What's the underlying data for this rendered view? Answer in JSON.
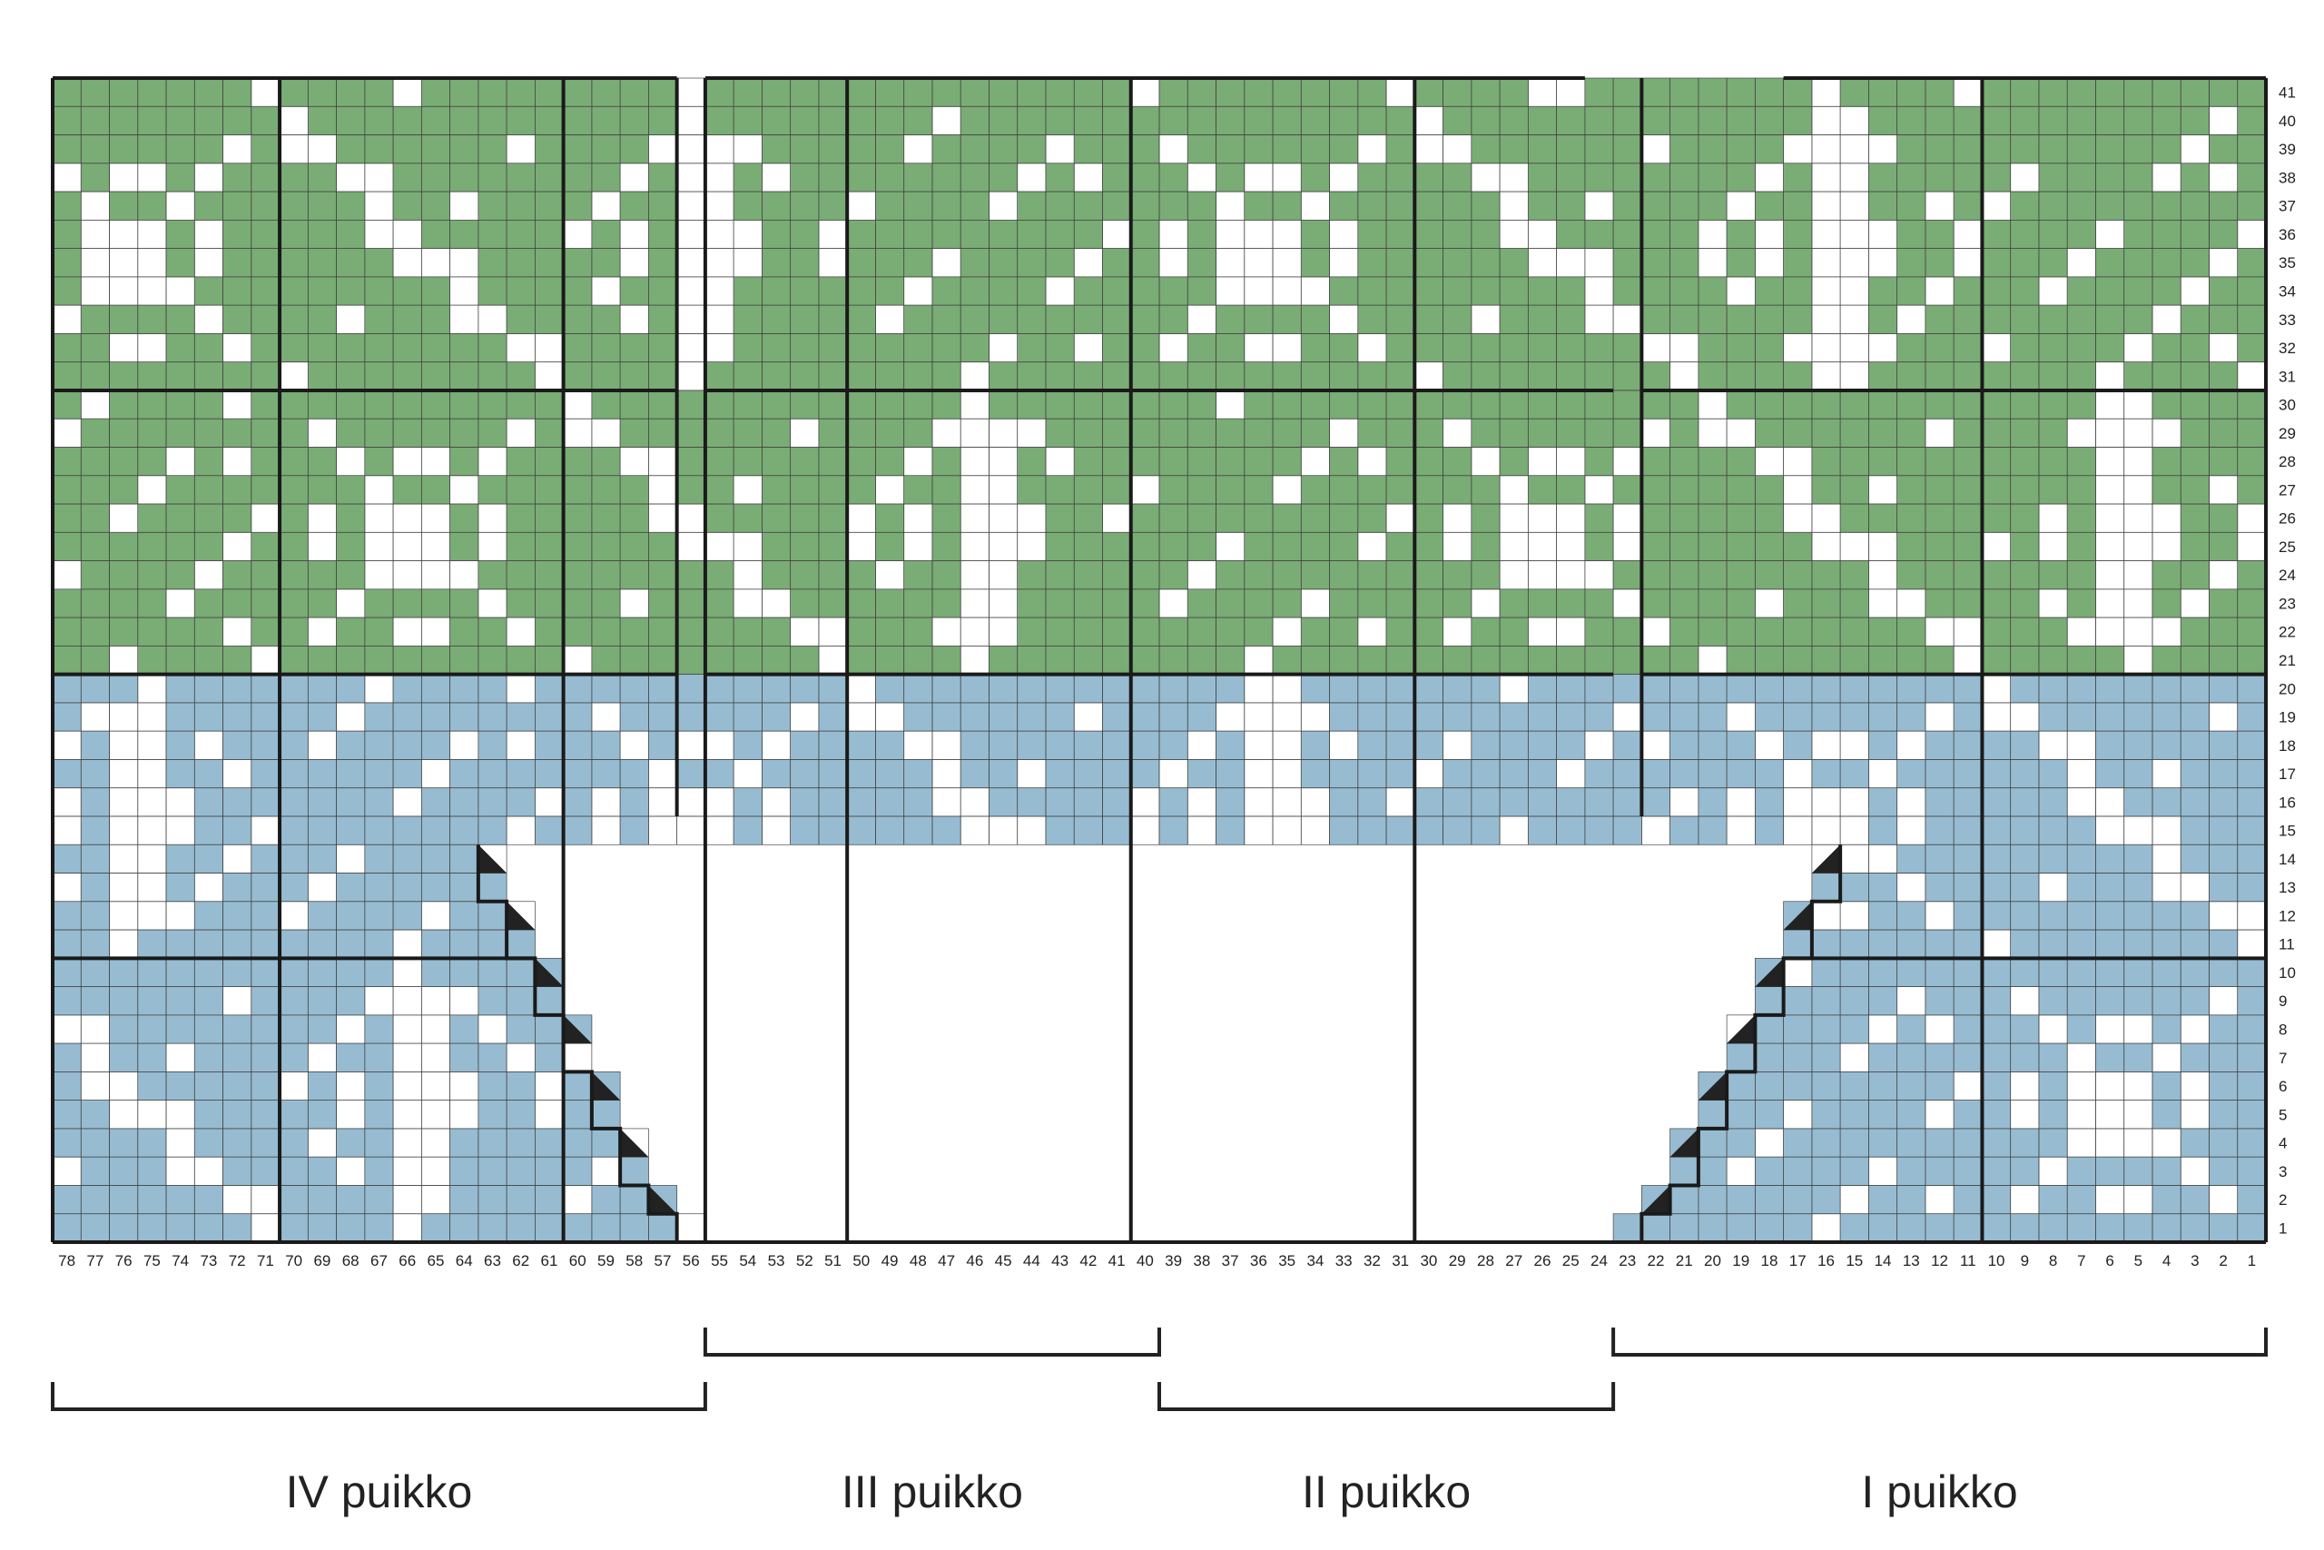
{
  "chart_data": {
    "type": "knitting-colorwork-chart",
    "columns": 78,
    "rows": 41,
    "column_order": "right-to-left",
    "colors": {
      "upper_background": "#7aac75",
      "lower_background": "#97bcd1",
      "contrast": "#ffffff",
      "grid_line": "#444444",
      "block_outline": "#1a1a1a",
      "decrease_mark": "#222222"
    },
    "color_zones": [
      {
        "rows": [
          21,
          41
        ],
        "color": "upper_background"
      },
      {
        "rows": [
          1,
          20
        ],
        "color": "lower_background"
      }
    ],
    "motif_block_boundaries": {
      "rows_between": [
        10,
        20,
        30
      ],
      "columns_between": [
        10,
        30,
        40,
        50,
        55,
        60,
        70
      ]
    },
    "decrease_marks": [
      {
        "row": 2,
        "col": 22
      },
      {
        "row": 4,
        "col": 21
      },
      {
        "row": 6,
        "col": 20
      },
      {
        "row": 8,
        "col": 19
      },
      {
        "row": 10,
        "col": 18
      },
      {
        "row": 12,
        "col": 17
      },
      {
        "row": 14,
        "col": 16
      },
      {
        "row": 2,
        "col": 57
      },
      {
        "row": 4,
        "col": 58
      },
      {
        "row": 6,
        "col": 59
      },
      {
        "row": 8,
        "col": 60
      },
      {
        "row": 10,
        "col": 61
      },
      {
        "row": 12,
        "col": 62
      },
      {
        "row": 14,
        "col": 63
      }
    ],
    "notch_right": [
      {
        "row": 1,
        "first_col": 24
      },
      {
        "row": 2,
        "first_col": 23
      },
      {
        "row": 3,
        "first_col": 22
      },
      {
        "row": 4,
        "first_col": 22
      },
      {
        "row": 5,
        "first_col": 21
      },
      {
        "row": 6,
        "first_col": 21
      },
      {
        "row": 7,
        "first_col": 20
      },
      {
        "row": 8,
        "first_col": 20
      },
      {
        "row": 9,
        "first_col": 19
      },
      {
        "row": 10,
        "first_col": 19
      },
      {
        "row": 11,
        "first_col": 18
      },
      {
        "row": 12,
        "first_col": 18
      },
      {
        "row": 13,
        "first_col": 17
      },
      {
        "row": 14,
        "first_col": 17
      }
    ],
    "notch_left": [
      {
        "row": 1,
        "last_col": 55
      },
      {
        "row": 2,
        "last_col": 56
      },
      {
        "row": 3,
        "last_col": 57
      },
      {
        "row": 4,
        "last_col": 57
      },
      {
        "row": 5,
        "last_col": 58
      },
      {
        "row": 6,
        "last_col": 58
      },
      {
        "row": 7,
        "last_col": 59
      },
      {
        "row": 8,
        "last_col": 59
      },
      {
        "row": 9,
        "last_col": 60
      },
      {
        "row": 10,
        "last_col": 60
      },
      {
        "row": 11,
        "last_col": 61
      },
      {
        "row": 12,
        "last_col": 61
      },
      {
        "row": 13,
        "last_col": 62
      },
      {
        "row": 14,
        "last_col": 62
      }
    ],
    "sections": [
      {
        "label": "I puikko",
        "from_col": 1,
        "to_col": 23,
        "bracket_level": 1
      },
      {
        "label": "II puikko",
        "from_col": 24,
        "to_col": 39,
        "bracket_level": 2
      },
      {
        "label": "III puikko",
        "from_col": 40,
        "to_col": 55,
        "bracket_level": 1
      },
      {
        "label": "IV puikko",
        "from_col": 56,
        "to_col": 78,
        "bracket_level": 2
      }
    ]
  }
}
